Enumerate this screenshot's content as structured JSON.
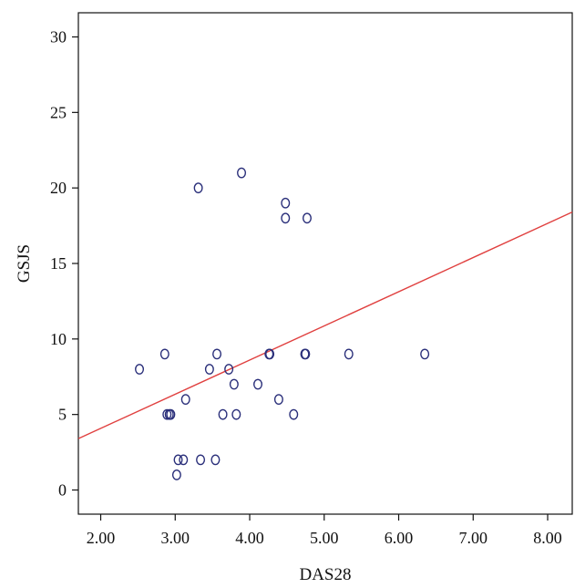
{
  "chart_data": {
    "type": "scatter",
    "xlabel": "DAS28",
    "ylabel": "GSJS",
    "xlim": [
      1.7,
      8.33
    ],
    "ylim": [
      -1.6,
      31.6
    ],
    "xticks": [
      2,
      3,
      4,
      5,
      6,
      7,
      8
    ],
    "xtick_labels": [
      "2.00",
      "3.00",
      "4.00",
      "5.00",
      "6.00",
      "7.00",
      "8.00"
    ],
    "yticks": [
      0,
      5,
      10,
      15,
      20,
      25,
      30
    ],
    "ytick_labels": [
      "0",
      "5",
      "10",
      "15",
      "20",
      "25",
      "30"
    ],
    "grid": false,
    "marker_color": "#2a2f7a",
    "line_color": "#e0403f",
    "points": [
      {
        "x": 2.52,
        "y": 8
      },
      {
        "x": 2.86,
        "y": 9
      },
      {
        "x": 2.89,
        "y": 5
      },
      {
        "x": 2.92,
        "y": 5
      },
      {
        "x": 2.94,
        "y": 5
      },
      {
        "x": 3.02,
        "y": 1
      },
      {
        "x": 3.04,
        "y": 2
      },
      {
        "x": 3.11,
        "y": 2
      },
      {
        "x": 3.14,
        "y": 6
      },
      {
        "x": 3.31,
        "y": 20
      },
      {
        "x": 3.34,
        "y": 2
      },
      {
        "x": 3.46,
        "y": 8
      },
      {
        "x": 3.54,
        "y": 2
      },
      {
        "x": 3.56,
        "y": 9
      },
      {
        "x": 3.64,
        "y": 5
      },
      {
        "x": 3.72,
        "y": 8
      },
      {
        "x": 3.79,
        "y": 7
      },
      {
        "x": 3.82,
        "y": 5
      },
      {
        "x": 3.89,
        "y": 21
      },
      {
        "x": 4.11,
        "y": 7
      },
      {
        "x": 4.26,
        "y": 9
      },
      {
        "x": 4.27,
        "y": 9
      },
      {
        "x": 4.39,
        "y": 6
      },
      {
        "x": 4.48,
        "y": 19
      },
      {
        "x": 4.48,
        "y": 18
      },
      {
        "x": 4.59,
        "y": 5
      },
      {
        "x": 4.74,
        "y": 9
      },
      {
        "x": 4.75,
        "y": 9
      },
      {
        "x": 4.77,
        "y": 18
      },
      {
        "x": 5.33,
        "y": 9
      },
      {
        "x": 6.35,
        "y": 9
      }
    ],
    "fit_line": {
      "x": [
        1.7,
        8.33
      ],
      "y": [
        3.4,
        18.4
      ]
    }
  }
}
